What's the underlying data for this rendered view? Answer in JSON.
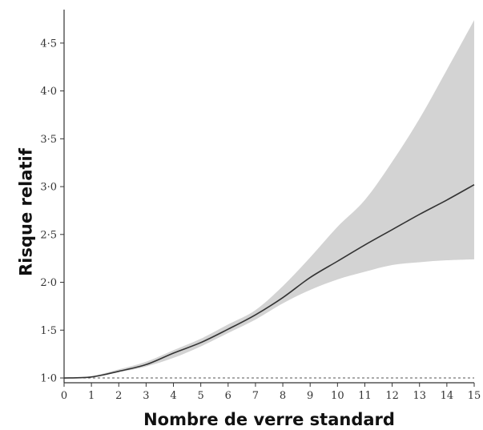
{
  "chart_data": {
    "type": "line",
    "title": "",
    "xlabel": "Nombre de verre standard",
    "ylabel": "Risque relatif",
    "xlim": [
      0,
      15
    ],
    "ylim": [
      0.95,
      4.85
    ],
    "x_ticks": [
      0,
      1,
      2,
      3,
      4,
      5,
      6,
      7,
      8,
      9,
      10,
      11,
      12,
      13,
      14,
      15
    ],
    "x_tick_labels": [
      "0",
      "1",
      "2",
      "3",
      "4",
      "5",
      "6",
      "7",
      "8",
      "9",
      "10",
      "11",
      "12",
      "13",
      "14",
      "15"
    ],
    "y_ticks": [
      1.0,
      1.5,
      2.0,
      2.5,
      3.0,
      3.5,
      4.0,
      4.5
    ],
    "y_tick_labels": [
      "1·0",
      "1·5",
      "2·0",
      "2·5",
      "3·0",
      "3·5",
      "4·0",
      "4·5"
    ],
    "reference_line": {
      "y": 1.0,
      "style": "dashed"
    },
    "grid": false,
    "legend": "none",
    "series": [
      {
        "x": [
          0,
          1,
          2,
          3,
          4,
          5,
          6,
          7,
          8,
          9,
          10,
          11,
          12,
          13,
          14,
          15
        ],
        "values": [
          1.0,
          1.01,
          1.07,
          1.14,
          1.26,
          1.37,
          1.51,
          1.66,
          1.84,
          2.05,
          2.22,
          2.39,
          2.55,
          2.71,
          2.86,
          3.02
        ],
        "lower": [
          1.0,
          1.01,
          1.06,
          1.12,
          1.21,
          1.33,
          1.47,
          1.61,
          1.78,
          1.92,
          2.03,
          2.11,
          2.18,
          2.21,
          2.23,
          2.24
        ],
        "upper": [
          1.0,
          1.02,
          1.09,
          1.17,
          1.29,
          1.41,
          1.56,
          1.71,
          1.96,
          2.26,
          2.58,
          2.86,
          3.26,
          3.71,
          4.22,
          4.74
        ]
      }
    ],
    "colors": {
      "line": "#333333",
      "band": "#d3d3d3",
      "axis": "#333333",
      "reference": "#555555"
    }
  }
}
